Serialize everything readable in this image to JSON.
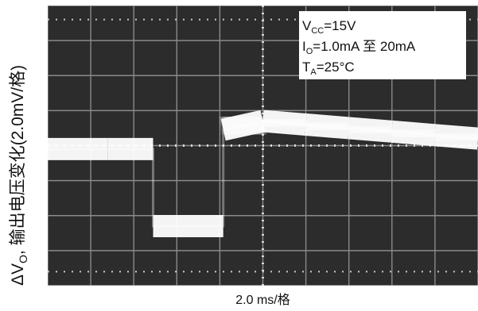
{
  "chart_data": {
    "type": "line",
    "title": "",
    "ylabel": "ΔVₒ, 输出电压变化(2.0mV/格)",
    "ylabel_parts": {
      "delta_v": "ΔV",
      "sub": "O",
      "rest": ", 输出电压变化(2.0mV/格)"
    },
    "xlabel": "2.0 ms/格",
    "xlabel_parts": {
      "num": "2.0 ms/",
      "unit": "格"
    },
    "x_units": "divisions",
    "y_units": "divisions",
    "xlim": [
      0,
      10
    ],
    "ylim": [
      -4,
      4
    ],
    "grid": true,
    "background": "#2c2c2c",
    "trace_color": "#ffffff",
    "annotations": [
      {
        "main": "V",
        "sub": "CC",
        "rest": "=15V"
      },
      {
        "main": "I",
        "sub": "O",
        "rest": "=1.0mA 至 20mA"
      },
      {
        "main": "T",
        "sub": "A",
        "rest": "=25°C"
      }
    ],
    "legend_position": "top-right",
    "series": [
      {
        "x": [
          0.0,
          1.4,
          2.45,
          2.45,
          4.08,
          4.08,
          5.0,
          6.0,
          7.0,
          8.0,
          9.0,
          10.0
        ],
        "y": [
          -0.1,
          -0.1,
          -0.1,
          -2.3,
          -2.3,
          0.45,
          0.7,
          0.6,
          0.5,
          0.4,
          0.3,
          0.2
        ]
      }
    ]
  }
}
